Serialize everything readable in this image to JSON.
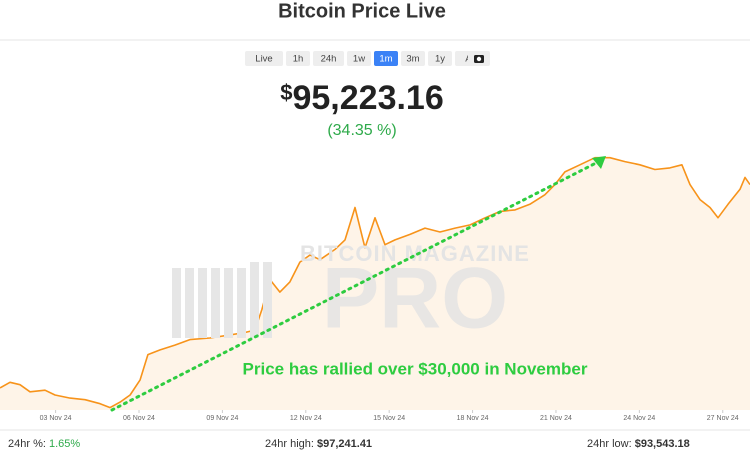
{
  "header": {
    "title": "Bitcoin Price Live"
  },
  "range_buttons": {
    "labels": [
      "Live",
      "1h",
      "24h",
      "1w",
      "1m",
      "3m",
      "1y",
      "All"
    ],
    "active": 4
  },
  "price": {
    "currency": "$",
    "amount": "95,223.16",
    "change": "(34.35 %)"
  },
  "watermark": {
    "top": "BITCOIN MAGAZINE",
    "bottom": "PRO"
  },
  "chart_data": {
    "type": "area",
    "annotation": "Price has rallied over $30,000 in November",
    "xlim": [
      1,
      27.98
    ],
    "ylim": [
      67500,
      101000
    ],
    "xticks": [
      {
        "value": 3,
        "label": "03 Nov 24"
      },
      {
        "value": 6,
        "label": "06 Nov 24"
      },
      {
        "value": 9,
        "label": "09 Nov 24"
      },
      {
        "value": 12,
        "label": "12 Nov 24"
      },
      {
        "value": 15,
        "label": "15 Nov 24"
      },
      {
        "value": 18,
        "label": "18 Nov 24"
      },
      {
        "value": 21,
        "label": "21 Nov 24"
      },
      {
        "value": 24,
        "label": "24 Nov 24"
      },
      {
        "value": 27,
        "label": "27 Nov 24"
      }
    ],
    "series": [
      {
        "name": "BTC",
        "color": "#f7931a",
        "x": [
          1.0,
          1.36,
          1.72,
          2.08,
          2.62,
          2.98,
          3.52,
          4.06,
          4.6,
          4.96,
          5.32,
          5.68,
          6.04,
          6.32,
          6.76,
          7.29,
          7.83,
          8.55,
          9.27,
          9.81,
          10.17,
          10.42,
          10.71,
          11.07,
          11.43,
          11.79,
          12.15,
          12.51,
          13.05,
          13.41,
          13.77,
          14.13,
          14.49,
          14.85,
          15.21,
          15.75,
          16.29,
          16.83,
          17.37,
          17.91,
          18.45,
          18.99,
          19.53,
          20.06,
          20.6,
          20.96,
          21.32,
          21.86,
          22.4,
          22.94,
          23.48,
          24.02,
          24.56,
          25.1,
          25.53,
          25.82,
          26.18,
          26.54,
          26.83,
          27.19,
          27.62,
          27.8,
          27.98
        ],
        "values": [
          70300,
          71000,
          70700,
          69800,
          70000,
          69400,
          69000,
          68800,
          68300,
          67800,
          68500,
          69400,
          71300,
          74500,
          75100,
          75700,
          76400,
          76600,
          77000,
          77300,
          77600,
          80200,
          84000,
          82400,
          83700,
          86200,
          87100,
          86500,
          87800,
          89000,
          93100,
          88000,
          91800,
          88400,
          89000,
          89700,
          90500,
          90000,
          90500,
          90900,
          91800,
          92600,
          92800,
          93500,
          94700,
          96000,
          97600,
          98500,
          99400,
          99400,
          98900,
          98500,
          97900,
          98100,
          98500,
          96000,
          94100,
          93100,
          91800,
          93500,
          95400,
          96900,
          96000
        ]
      }
    ]
  },
  "footer": {
    "change_label": "24hr %:",
    "change_value": "1.65%",
    "high_label": "24hr high:",
    "high_value": "$97,241.41",
    "low_label": "24hr low:",
    "low_value": "$93,543.18"
  }
}
